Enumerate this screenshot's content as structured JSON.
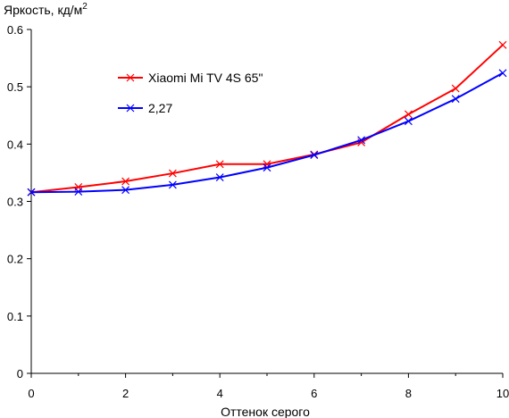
{
  "chart_data": {
    "type": "line",
    "title": "",
    "ylabel": "Яркость, кд/м",
    "ylabel_superscript": "2",
    "xlabel": "Оттенок серого",
    "xlim": [
      0,
      10
    ],
    "ylim": [
      0,
      0.6
    ],
    "x_ticks": [
      "0",
      "2",
      "4",
      "6",
      "8",
      "10"
    ],
    "y_ticks": [
      "0",
      "0.1",
      "0.2",
      "0.3",
      "0.4",
      "0.5",
      "0.6"
    ],
    "x_tick_values": [
      0,
      2,
      4,
      6,
      8,
      10
    ],
    "y_tick_values": [
      0,
      0.1,
      0.2,
      0.3,
      0.4,
      0.5,
      0.6
    ],
    "grid": false,
    "legend_position": "upper-left",
    "x": [
      0,
      1,
      2,
      3,
      4,
      5,
      6,
      7,
      8,
      9,
      10
    ],
    "series": [
      {
        "name": "Xiaomi Mi TV 4S 65\"",
        "color": "#ff0000",
        "marker": "x",
        "values": [
          0.316,
          0.325,
          0.335,
          0.349,
          0.365,
          0.365,
          0.382,
          0.403,
          0.452,
          0.497,
          0.573
        ]
      },
      {
        "name": "2,27",
        "color": "#0000ff",
        "marker": "x",
        "values": [
          0.316,
          0.317,
          0.32,
          0.329,
          0.342,
          0.359,
          0.381,
          0.407,
          0.44,
          0.479,
          0.524
        ]
      }
    ]
  }
}
